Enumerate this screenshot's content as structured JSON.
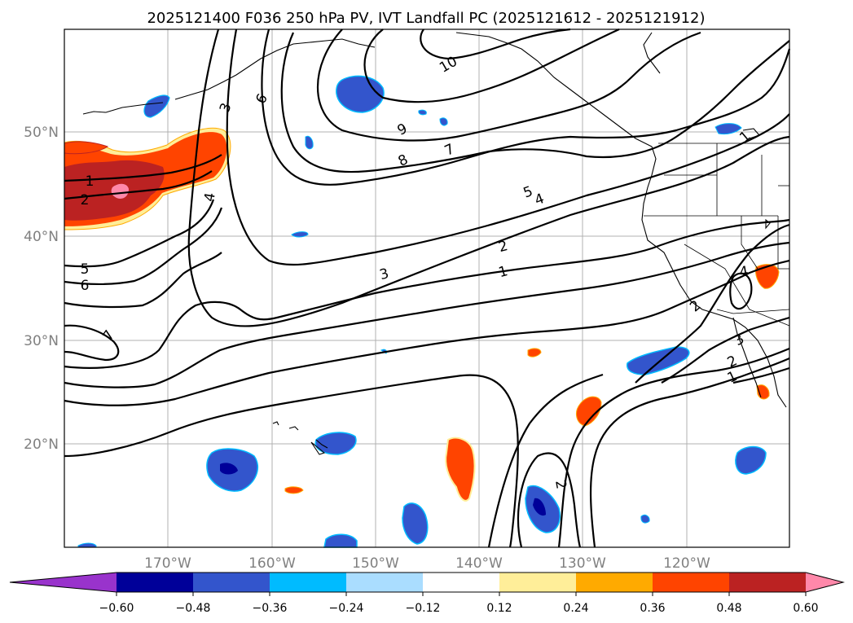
{
  "title": "2025121400 F036 250 hPa PV, IVT Landfall PC (2025121612 - 2025121912)",
  "axes": {
    "x_ticks": [
      "170°W",
      "160°W",
      "150°W",
      "140°W",
      "130°W",
      "120°W"
    ],
    "y_ticks": [
      "50°N",
      "40°N",
      "30°N",
      "20°N"
    ]
  },
  "colorbar": {
    "ticks": [
      "−0.60",
      "−0.48",
      "−0.36",
      "−0.24",
      "−0.12",
      "0.12",
      "0.24",
      "0.36",
      "0.48",
      "0.60"
    ],
    "colors": [
      "#9933cc",
      "#000099",
      "#3355cc",
      "#00bbff",
      "#aaddff",
      "#ffffff",
      "#ffee99",
      "#ffaa00",
      "#ff4400",
      "#bb2222",
      "#ff88aa"
    ]
  },
  "contour_labels": [
    "10",
    "9",
    "8",
    "7",
    "6",
    "5",
    "4",
    "3",
    "2",
    "1",
    "1",
    "2",
    "5",
    "6",
    "7",
    "4",
    "3",
    "2",
    "1",
    "2",
    "4",
    "3",
    "2",
    "1"
  ],
  "colors": {
    "grid": "#b0b0b0",
    "contour": "#000000",
    "tick_label": "#808080"
  }
}
